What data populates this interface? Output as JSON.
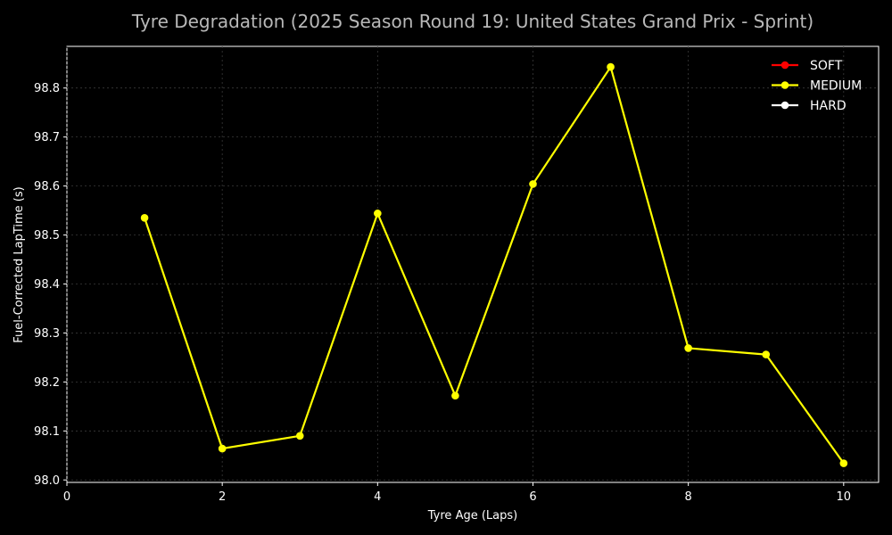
{
  "chart_data": {
    "type": "line",
    "title": "Tyre Degradation (2025 Season Round 19: United States Grand Prix - Sprint)",
    "xlabel": "Tyre Age (Laps)",
    "ylabel": "Fuel-Corrected LapTime (s)",
    "xlim": [
      0,
      10.45
    ],
    "ylim": [
      97.995,
      98.885
    ],
    "xticks": [
      0,
      2,
      4,
      6,
      8,
      10
    ],
    "yticks": [
      98.0,
      98.1,
      98.2,
      98.3,
      98.4,
      98.5,
      98.6,
      98.7,
      98.8
    ],
    "grid": true,
    "legend_position": "top-right",
    "series": [
      {
        "name": "SOFT",
        "color": "#ff0000",
        "x": [],
        "y": []
      },
      {
        "name": "MEDIUM",
        "color": "#ffff00",
        "x": [
          1,
          2,
          3,
          4,
          5,
          6,
          7,
          8,
          9,
          10
        ],
        "y": [
          98.535,
          98.064,
          98.09,
          98.544,
          98.172,
          98.604,
          98.843,
          98.269,
          98.256,
          98.034
        ]
      },
      {
        "name": "HARD",
        "color": "#ffffff",
        "x": [],
        "y": []
      }
    ]
  }
}
